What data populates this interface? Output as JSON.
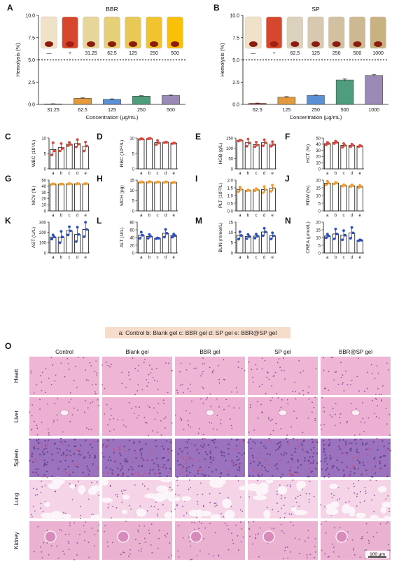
{
  "panel_letters": [
    "A",
    "B",
    "C",
    "D",
    "E",
    "F",
    "G",
    "H",
    "I",
    "J",
    "K",
    "L",
    "M",
    "N",
    "O"
  ],
  "legend": "a: Control  b: Blank gel  c: BBR gel  d: SP gel  e: BBR@SP gel",
  "chart_data": [
    {
      "id": "A",
      "type": "bar",
      "title": "BBR",
      "xlabel": "Concentration (μg/mL)",
      "ylabel": "Hemolysis (%)",
      "ylim": [
        0,
        10
      ],
      "yticks": [
        "0.0",
        "2.5",
        "5.0",
        "7.5",
        "10.0"
      ],
      "threshold": 5.0,
      "categories": [
        "31.25",
        "62.5",
        "125",
        "250",
        "500"
      ],
      "values": [
        0.05,
        0.68,
        0.58,
        0.92,
        1.0
      ],
      "errors": [
        0.02,
        0.05,
        0.04,
        0.05,
        0.06
      ],
      "colors": [
        "#c84a3a",
        "#e39a3c",
        "#5b8fd6",
        "#4e9e7e",
        "#9b8ab5"
      ],
      "tube_labels": [
        "—",
        "+",
        "31.25",
        "62.5",
        "125",
        "250",
        "500"
      ]
    },
    {
      "id": "B",
      "type": "bar",
      "title": "SP",
      "xlabel": "Concentration (μg/mL)",
      "ylabel": "Hemolysis (%)",
      "ylim": [
        0,
        10
      ],
      "yticks": [
        "0.0",
        "2.5",
        "5.0",
        "7.5",
        "10.0"
      ],
      "threshold": 5.0,
      "categories": [
        "62.5",
        "125",
        "250",
        "500",
        "1000"
      ],
      "values": [
        0.12,
        0.82,
        1.0,
        2.75,
        3.25
      ],
      "errors": [
        0.03,
        0.05,
        0.05,
        0.1,
        0.12
      ],
      "colors": [
        "#c84a3a",
        "#e39a3c",
        "#5b8fd6",
        "#4e9e7e",
        "#9b8ab5"
      ],
      "tube_labels": [
        "—",
        "+",
        "62.5",
        "125",
        "250",
        "500",
        "1000"
      ]
    },
    {
      "id": "C",
      "type": "bar",
      "ylabel": "WBC (10⁹/L)",
      "ylim": [
        0,
        10
      ],
      "yticks": [
        "0",
        "5",
        "10"
      ],
      "categories": [
        "a",
        "b",
        "c",
        "d",
        "e"
      ],
      "values": [
        6.3,
        6.9,
        8.0,
        8.2,
        7.3
      ],
      "errors": [
        2.0,
        1.3,
        0.5,
        1.1,
        1.4
      ],
      "dot": "#d94a3c",
      "points": [
        [
          4.5,
          8.5,
          5.8
        ],
        [
          5.8,
          8.2,
          6.6
        ],
        [
          7.5,
          8.6,
          7.9
        ],
        [
          7.1,
          9.5,
          8.0
        ],
        [
          5.8,
          8.7,
          7.4
        ]
      ]
    },
    {
      "id": "D",
      "type": "bar",
      "ylabel": "RBC (10¹²/L)",
      "ylim": [
        0,
        10
      ],
      "yticks": [
        "0",
        "5",
        "10"
      ],
      "categories": [
        "a",
        "b",
        "c",
        "d",
        "e"
      ],
      "values": [
        9.7,
        9.8,
        8.5,
        8.6,
        8.3
      ],
      "errors": [
        0.2,
        0.2,
        0.7,
        0.15,
        0.2
      ],
      "dot": "#d94a3c",
      "points": [
        [
          9.6,
          9.8,
          9.7
        ],
        [
          9.7,
          9.9,
          9.8
        ],
        [
          7.9,
          9.2,
          8.4
        ],
        [
          8.5,
          8.7,
          8.6
        ],
        [
          8.2,
          8.4,
          8.3
        ]
      ]
    },
    {
      "id": "E",
      "type": "bar",
      "ylabel": "HGB (g/L)",
      "ylim": [
        0,
        150
      ],
      "yticks": [
        "0",
        "50",
        "100",
        "150"
      ],
      "categories": [
        "a",
        "b",
        "c",
        "d",
        "e"
      ],
      "values": [
        138,
        127,
        118,
        127,
        120
      ],
      "errors": [
        3,
        18,
        12,
        16,
        12
      ],
      "dot": "#d94a3c",
      "points": [
        [
          135,
          140,
          139
        ],
        [
          110,
          145,
          126
        ],
        [
          108,
          130,
          116
        ],
        [
          112,
          142,
          127
        ],
        [
          110,
          132,
          118
        ]
      ]
    },
    {
      "id": "F",
      "type": "bar",
      "ylabel": "HCT (%)",
      "ylim": [
        0,
        50
      ],
      "yticks": [
        "0",
        "10",
        "20",
        "30",
        "40",
        "50"
      ],
      "categories": [
        "a",
        "b",
        "c",
        "d",
        "e"
      ],
      "values": [
        41,
        43,
        38,
        38,
        37
      ],
      "errors": [
        2.5,
        2.0,
        3.0,
        2.0,
        1.0
      ],
      "dot": "#d94a3c",
      "points": [
        [
          39,
          43,
          41
        ],
        [
          41,
          45,
          43
        ],
        [
          35,
          41,
          38
        ],
        [
          36,
          40,
          38
        ],
        [
          36,
          38,
          37
        ]
      ]
    },
    {
      "id": "G",
      "type": "bar",
      "ylabel": "MCV (fL)",
      "ylim": [
        0,
        50
      ],
      "yticks": [
        "0",
        "10",
        "20",
        "30",
        "40",
        "50"
      ],
      "categories": [
        "a",
        "b",
        "c",
        "d",
        "e"
      ],
      "values": [
        43.5,
        43.5,
        44.0,
        44.0,
        44.0
      ],
      "errors": [
        0.5,
        0.4,
        0.5,
        0.5,
        0.4
      ],
      "dot": "#f0a030",
      "points": [
        [
          43,
          44,
          43.5
        ],
        [
          43.2,
          43.8,
          43.5
        ],
        [
          43.5,
          44.5,
          44
        ],
        [
          43.5,
          44.5,
          44
        ],
        [
          43.6,
          44.4,
          44
        ]
      ]
    },
    {
      "id": "H",
      "type": "bar",
      "ylabel": "MCH (pg)",
      "ylim": [
        0,
        15
      ],
      "yticks": [
        "0",
        "5",
        "10",
        "15"
      ],
      "categories": [
        "a",
        "b",
        "c",
        "d",
        "e"
      ],
      "values": [
        14.0,
        14.1,
        14.0,
        14.0,
        13.8
      ],
      "errors": [
        0.2,
        0.2,
        0.15,
        0.2,
        0.15
      ],
      "dot": "#f0a030",
      "points": [
        [
          13.8,
          14.2,
          14
        ],
        [
          13.9,
          14.3,
          14.1
        ],
        [
          13.85,
          14.15,
          14
        ],
        [
          13.8,
          14.2,
          14
        ],
        [
          13.65,
          13.95,
          13.8
        ]
      ]
    },
    {
      "id": "I",
      "type": "bar",
      "ylabel": "PLT (10¹²/L)",
      "ylim": [
        0,
        2.0
      ],
      "yticks": [
        "0.0",
        "0.5",
        "1.0",
        "1.5",
        "2.0"
      ],
      "categories": [
        "a",
        "b",
        "c",
        "d",
        "e"
      ],
      "values": [
        1.4,
        1.33,
        1.37,
        1.38,
        1.47
      ],
      "errors": [
        0.15,
        0.03,
        0.07,
        0.2,
        0.2
      ],
      "dot": "#f0a030",
      "points": [
        [
          1.25,
          1.55,
          1.4
        ],
        [
          1.3,
          1.36,
          1.33
        ],
        [
          1.3,
          1.44,
          1.37
        ],
        [
          1.18,
          1.58,
          1.38
        ],
        [
          1.27,
          1.67,
          1.47
        ]
      ]
    },
    {
      "id": "J",
      "type": "bar",
      "ylabel": "RDW (%)",
      "ylim": [
        0,
        20
      ],
      "yticks": [
        "0",
        "5",
        "10",
        "15",
        "20"
      ],
      "categories": [
        "a",
        "b",
        "c",
        "d",
        "e"
      ],
      "values": [
        18,
        18,
        16.5,
        16.3,
        15.8
      ],
      "errors": [
        1.2,
        0.5,
        0.5,
        0.6,
        0.8
      ],
      "dot": "#f0a030",
      "points": [
        [
          16.8,
          19.2,
          18
        ],
        [
          17.5,
          18.5,
          18
        ],
        [
          16,
          17,
          16.5
        ],
        [
          15.7,
          16.9,
          16.3
        ],
        [
          15,
          16.6,
          15.8
        ]
      ]
    },
    {
      "id": "K",
      "type": "bar",
      "ylabel": "AST (U/L)",
      "ylim": [
        0,
        300
      ],
      "yticks": [
        "0",
        "100",
        "200",
        "300"
      ],
      "categories": [
        "a",
        "b",
        "c",
        "d",
        "e"
      ],
      "values": [
        155,
        155,
        215,
        180,
        228
      ],
      "errors": [
        20,
        55,
        40,
        70,
        70
      ],
      "dot": "#2a4fc4",
      "points": [
        [
          135,
          175,
          155
        ],
        [
          100,
          210,
          155
        ],
        [
          175,
          255,
          215
        ],
        [
          110,
          250,
          180
        ],
        [
          158,
          298,
          228
        ]
      ]
    },
    {
      "id": "L",
      "type": "bar",
      "ylabel": "ALT (U/L)",
      "ylim": [
        0,
        80
      ],
      "yticks": [
        "0",
        "20",
        "40",
        "60",
        "80"
      ],
      "categories": [
        "a",
        "b",
        "c",
        "d",
        "e"
      ],
      "values": [
        46,
        43,
        38,
        51,
        45
      ],
      "errors": [
        8,
        5,
        1,
        10,
        4
      ],
      "dot": "#2a4fc4",
      "points": [
        [
          38,
          54,
          46
        ],
        [
          38,
          48,
          43
        ],
        [
          37,
          39,
          38
        ],
        [
          41,
          61,
          51
        ],
        [
          41,
          49,
          45
        ]
      ]
    },
    {
      "id": "M",
      "type": "bar",
      "ylabel": "BUN (mmol/L)",
      "ylim": [
        0,
        15
      ],
      "yticks": [
        "0",
        "5",
        "10",
        "15"
      ],
      "categories": [
        "a",
        "b",
        "c",
        "d",
        "e"
      ],
      "values": [
        8.5,
        8.0,
        8.2,
        10.2,
        8.3
      ],
      "errors": [
        1.8,
        1.0,
        1.0,
        1.8,
        1.5
      ],
      "dot": "#2a4fc4",
      "points": [
        [
          6.7,
          10.3,
          8.5
        ],
        [
          7,
          9,
          8
        ],
        [
          7.2,
          9.2,
          8.2
        ],
        [
          8.4,
          12,
          10.2
        ],
        [
          6.8,
          9.8,
          8.3
        ]
      ]
    },
    {
      "id": "N",
      "type": "bar",
      "ylabel": "CREA (μmol/L)",
      "ylim": [
        0,
        20
      ],
      "yticks": [
        "0",
        "5",
        "10",
        "15",
        "20"
      ],
      "categories": [
        "a",
        "b",
        "c",
        "d",
        "e"
      ],
      "values": [
        11,
        12.3,
        11.5,
        13,
        8.2
      ],
      "errors": [
        1.2,
        3.2,
        3,
        3.5,
        0.3
      ],
      "dot": "#2a4fc4",
      "points": [
        [
          9.8,
          12.2,
          11
        ],
        [
          9.1,
          15.5,
          12.3
        ],
        [
          8.5,
          14.5,
          11.5
        ],
        [
          9.5,
          16.5,
          13
        ],
        [
          7.9,
          8.5,
          8.2
        ]
      ]
    }
  ],
  "histology": {
    "columns": [
      "Control",
      "Blank gel",
      "BBR gel",
      "SP gel",
      "BBR@SP gel"
    ],
    "rows": [
      "Heart",
      "Liver",
      "Spleen",
      "Lung",
      "Kidney"
    ],
    "scale_bar": "100 μm",
    "colors": {
      "heart": "#efb5d4",
      "liver": "#ebb0d2",
      "spleen": "#9b72bd",
      "lung": "#f4d4e6",
      "kidney": "#eab2d0"
    }
  }
}
